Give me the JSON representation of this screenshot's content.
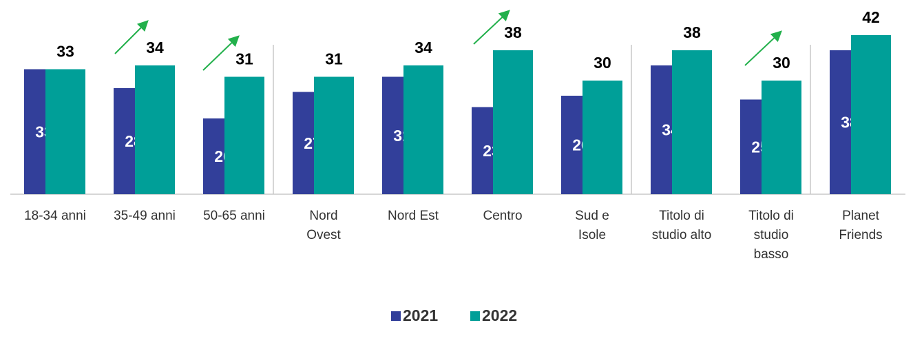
{
  "chart_data": {
    "type": "bar",
    "categories": [
      "18-34 anni",
      "35-49 anni",
      "50-65 anni",
      "Nord\nOvest",
      "Nord Est",
      "Centro",
      "Sud e\nIsole",
      "Titolo di\nstudio alto",
      "Titolo di\nstudio\nbasso",
      "Planet\nFriends"
    ],
    "series": [
      {
        "name": "2021",
        "color": "#323f9a",
        "values": [
          33,
          28,
          20,
          27,
          31,
          23,
          26,
          34,
          25,
          38
        ]
      },
      {
        "name": "2022",
        "color": "#009f98",
        "values": [
          33,
          34,
          31,
          31,
          34,
          38,
          30,
          38,
          30,
          42
        ]
      }
    ],
    "ylim": [
      0,
      45
    ],
    "legend": "bottom"
  }
}
